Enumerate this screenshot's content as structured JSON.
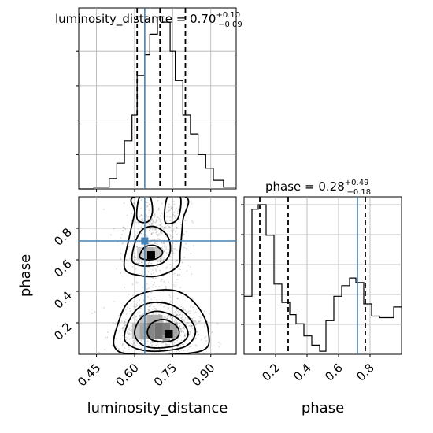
{
  "chart_data": [
    {
      "type": "histogram",
      "panel": "luminosity_distance marginal",
      "title": {
        "param": "luminosity_distance",
        "median": "0.70",
        "plus": "+0.10",
        "minus": "−0.09"
      },
      "xlim": [
        0.38,
        1.0
      ],
      "bins": [
        {
          "lo": 0.38,
          "hi": 0.41,
          "v": 0.0
        },
        {
          "lo": 0.41,
          "hi": 0.44,
          "v": 0.0
        },
        {
          "lo": 0.44,
          "hi": 0.47,
          "v": 0.01
        },
        {
          "lo": 0.47,
          "hi": 0.5,
          "v": 0.01
        },
        {
          "lo": 0.5,
          "hi": 0.53,
          "v": 0.06
        },
        {
          "lo": 0.53,
          "hi": 0.56,
          "v": 0.15
        },
        {
          "lo": 0.56,
          "hi": 0.59,
          "v": 0.28
        },
        {
          "lo": 0.59,
          "hi": 0.61,
          "v": 0.43
        },
        {
          "lo": 0.61,
          "hi": 0.64,
          "v": 0.66
        },
        {
          "lo": 0.64,
          "hi": 0.66,
          "v": 0.78
        },
        {
          "lo": 0.66,
          "hi": 0.69,
          "v": 0.9
        },
        {
          "lo": 0.69,
          "hi": 0.71,
          "v": 1.0
        },
        {
          "lo": 0.71,
          "hi": 0.74,
          "v": 0.97
        },
        {
          "lo": 0.74,
          "hi": 0.76,
          "v": 0.8
        },
        {
          "lo": 0.76,
          "hi": 0.79,
          "v": 0.63
        },
        {
          "lo": 0.79,
          "hi": 0.82,
          "v": 0.43
        },
        {
          "lo": 0.82,
          "hi": 0.85,
          "v": 0.32
        },
        {
          "lo": 0.85,
          "hi": 0.88,
          "v": 0.2
        },
        {
          "lo": 0.88,
          "hi": 0.91,
          "v": 0.12
        },
        {
          "lo": 0.91,
          "hi": 0.95,
          "v": 0.05
        },
        {
          "lo": 0.95,
          "hi": 1.0,
          "v": 0.01
        }
      ],
      "quantile_lines": [
        0.61,
        0.7,
        0.8
      ],
      "truth": 0.64,
      "xticks": [
        "0.45",
        "0.60",
        "0.75",
        "0.90"
      ]
    },
    {
      "type": "histogram",
      "panel": "phase marginal",
      "title": {
        "param": "phase",
        "median": "0.28",
        "plus": "+0.49",
        "minus": "−0.18"
      },
      "xlim": [
        0.0,
        1.0
      ],
      "bins": [
        {
          "lo": 0.0,
          "hi": 0.05,
          "v": 0.38
        },
        {
          "lo": 0.05,
          "hi": 0.09,
          "v": 0.95
        },
        {
          "lo": 0.09,
          "hi": 0.14,
          "v": 0.98
        },
        {
          "lo": 0.14,
          "hi": 0.19,
          "v": 0.78
        },
        {
          "lo": 0.19,
          "hi": 0.24,
          "v": 0.46
        },
        {
          "lo": 0.24,
          "hi": 0.29,
          "v": 0.34
        },
        {
          "lo": 0.29,
          "hi": 0.33,
          "v": 0.26
        },
        {
          "lo": 0.33,
          "hi": 0.38,
          "v": 0.2
        },
        {
          "lo": 0.38,
          "hi": 0.43,
          "v": 0.12
        },
        {
          "lo": 0.43,
          "hi": 0.48,
          "v": 0.06
        },
        {
          "lo": 0.48,
          "hi": 0.52,
          "v": 0.02
        },
        {
          "lo": 0.52,
          "hi": 0.57,
          "v": 0.22
        },
        {
          "lo": 0.57,
          "hi": 0.62,
          "v": 0.38
        },
        {
          "lo": 0.62,
          "hi": 0.67,
          "v": 0.45
        },
        {
          "lo": 0.67,
          "hi": 0.71,
          "v": 0.5
        },
        {
          "lo": 0.71,
          "hi": 0.76,
          "v": 0.47
        },
        {
          "lo": 0.76,
          "hi": 0.81,
          "v": 0.33
        },
        {
          "lo": 0.81,
          "hi": 0.86,
          "v": 0.25
        },
        {
          "lo": 0.86,
          "hi": 0.9,
          "v": 0.24
        },
        {
          "lo": 0.9,
          "hi": 0.95,
          "v": 0.24
        },
        {
          "lo": 0.95,
          "hi": 1.0,
          "v": 0.31
        }
      ],
      "quantile_lines": [
        0.1,
        0.28,
        0.77
      ],
      "truth": 0.72,
      "xticks": [
        "0.2",
        "0.4",
        "0.6",
        "0.8"
      ]
    },
    {
      "type": "scatter",
      "panel": "luminosity_distance vs phase",
      "xlim": [
        0.38,
        1.0
      ],
      "ylim": [
        0.0,
        1.0
      ],
      "xlabel": "luminosity_distance",
      "ylabel": "phase",
      "xticks": [
        "0.45",
        "0.60",
        "0.75",
        "0.90"
      ],
      "yticks": [
        "0.2",
        "0.4",
        "0.6",
        "0.8"
      ],
      "truth": {
        "x": 0.64,
        "y": 0.72
      },
      "density_cells": [
        {
          "x0": 0.59,
          "x1": 0.62,
          "y0": 0.1,
          "y1": 0.2,
          "d": 0.3
        },
        {
          "x0": 0.62,
          "x1": 0.65,
          "y0": 0.1,
          "y1": 0.2,
          "d": 0.45
        },
        {
          "x0": 0.65,
          "x1": 0.68,
          "y0": 0.1,
          "y1": 0.2,
          "d": 0.6
        },
        {
          "x0": 0.68,
          "x1": 0.71,
          "y0": 0.1,
          "y1": 0.2,
          "d": 0.7
        },
        {
          "x0": 0.71,
          "x1": 0.74,
          "y0": 0.1,
          "y1": 0.2,
          "d": 0.65
        },
        {
          "x0": 0.74,
          "x1": 0.77,
          "y0": 0.1,
          "y1": 0.2,
          "d": 0.45
        },
        {
          "x0": 0.62,
          "x1": 0.65,
          "y0": 0.2,
          "y1": 0.25,
          "d": 0.3
        },
        {
          "x0": 0.65,
          "x1": 0.71,
          "y0": 0.2,
          "y1": 0.25,
          "d": 0.4
        },
        {
          "x0": 0.71,
          "x1": 0.74,
          "y0": 0.08,
          "y1": 0.12,
          "d": 0.5
        },
        {
          "x0": 0.61,
          "x1": 0.64,
          "y0": 0.6,
          "y1": 0.68,
          "d": 0.25
        },
        {
          "x0": 0.64,
          "x1": 0.68,
          "y0": 0.6,
          "y1": 0.68,
          "d": 0.4
        },
        {
          "x0": 0.68,
          "x1": 0.71,
          "y0": 0.62,
          "y1": 0.68,
          "d": 0.3
        }
      ],
      "peaks": [
        {
          "x": 0.735,
          "y": 0.13
        },
        {
          "x": 0.665,
          "y": 0.63
        }
      ],
      "contours": [
        [
          [
            0.56,
            0.12
          ],
          [
            0.58,
            0.22
          ],
          [
            0.62,
            0.3
          ],
          [
            0.68,
            0.33
          ],
          [
            0.75,
            0.31
          ],
          [
            0.81,
            0.24
          ],
          [
            0.84,
            0.14
          ],
          [
            0.8,
            0.05
          ],
          [
            0.7,
            0.02
          ],
          [
            0.62,
            0.03
          ],
          [
            0.57,
            0.07
          ]
        ],
        [
          [
            0.6,
            0.13
          ],
          [
            0.62,
            0.22
          ],
          [
            0.67,
            0.27
          ],
          [
            0.73,
            0.26
          ],
          [
            0.79,
            0.2
          ],
          [
            0.81,
            0.12
          ],
          [
            0.77,
            0.06
          ],
          [
            0.69,
            0.04
          ],
          [
            0.63,
            0.06
          ]
        ],
        [
          [
            0.65,
            0.14
          ],
          [
            0.67,
            0.2
          ],
          [
            0.72,
            0.22
          ],
          [
            0.77,
            0.17
          ],
          [
            0.77,
            0.11
          ],
          [
            0.73,
            0.08
          ],
          [
            0.67,
            0.09
          ]
        ],
        [
          [
            0.59,
            0.6
          ],
          [
            0.6,
            0.7
          ],
          [
            0.63,
            0.79
          ],
          [
            0.68,
            0.81
          ],
          [
            0.73,
            0.75
          ],
          [
            0.74,
            0.65
          ],
          [
            0.71,
            0.58
          ],
          [
            0.65,
            0.56
          ],
          [
            0.61,
            0.57
          ]
        ],
        [
          [
            0.62,
            0.62
          ],
          [
            0.64,
            0.68
          ],
          [
            0.68,
            0.69
          ],
          [
            0.71,
            0.65
          ],
          [
            0.69,
            0.61
          ],
          [
            0.65,
            0.6
          ]
        ],
        [
          [
            0.61,
            0.86
          ],
          [
            0.62,
            1.0
          ],
          [
            0.66,
            1.0
          ],
          [
            0.67,
            0.9
          ],
          [
            0.65,
            0.84
          ]
        ],
        [
          [
            0.72,
            0.84
          ],
          [
            0.73,
            1.0
          ],
          [
            0.78,
            1.0
          ],
          [
            0.77,
            0.86
          ]
        ],
        [
          [
            0.56,
            0.55
          ],
          [
            0.58,
            0.75
          ],
          [
            0.6,
            0.9
          ],
          [
            0.6,
            1.0
          ],
          [
            0.8,
            1.0
          ],
          [
            0.79,
            0.85
          ],
          [
            0.78,
            0.66
          ],
          [
            0.77,
            0.56
          ],
          [
            0.7,
            0.5
          ],
          [
            0.62,
            0.5
          ]
        ],
        [
          [
            0.52,
            0.05
          ],
          [
            0.54,
            0.22
          ],
          [
            0.58,
            0.34
          ],
          [
            0.66,
            0.4
          ],
          [
            0.77,
            0.4
          ],
          [
            0.85,
            0.3
          ],
          [
            0.89,
            0.15
          ],
          [
            0.86,
            0.02
          ],
          [
            0.6,
            0.0
          ]
        ]
      ]
    }
  ]
}
